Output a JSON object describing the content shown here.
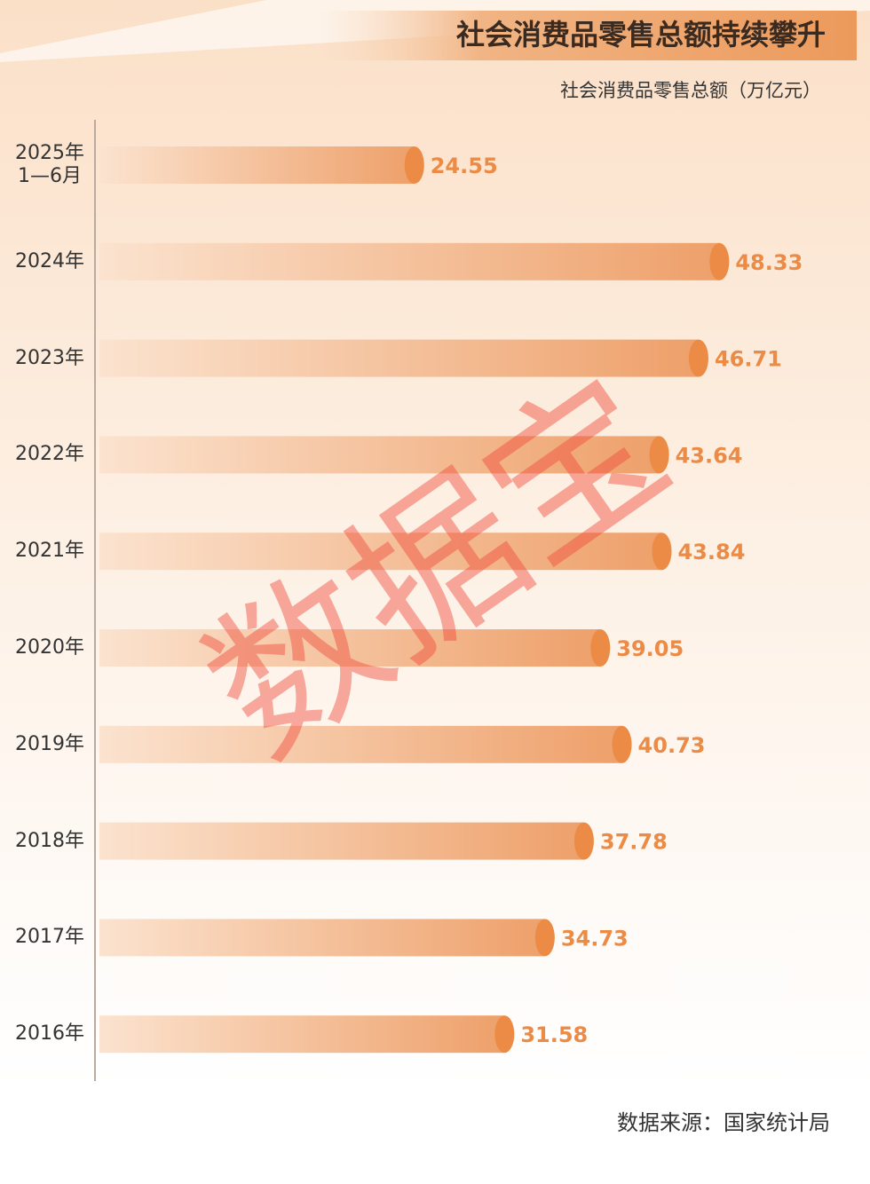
{
  "chart_data": {
    "type": "bar",
    "orientation": "horizontal",
    "title": "社会消费品零售总额持续攀升",
    "subtitle": "社会消费品零售总额（万亿元）",
    "categories": [
      "2025年\n1—6月",
      "2024年",
      "2023年",
      "2022年",
      "2021年",
      "2020年",
      "2019年",
      "2018年",
      "2017年",
      "2016年"
    ],
    "values": [
      24.55,
      48.33,
      46.71,
      43.64,
      43.84,
      39.05,
      40.73,
      37.78,
      34.73,
      31.58
    ],
    "color": "#ec8b45",
    "source": "数据来源：国家统计局",
    "watermark": "数据宝"
  }
}
